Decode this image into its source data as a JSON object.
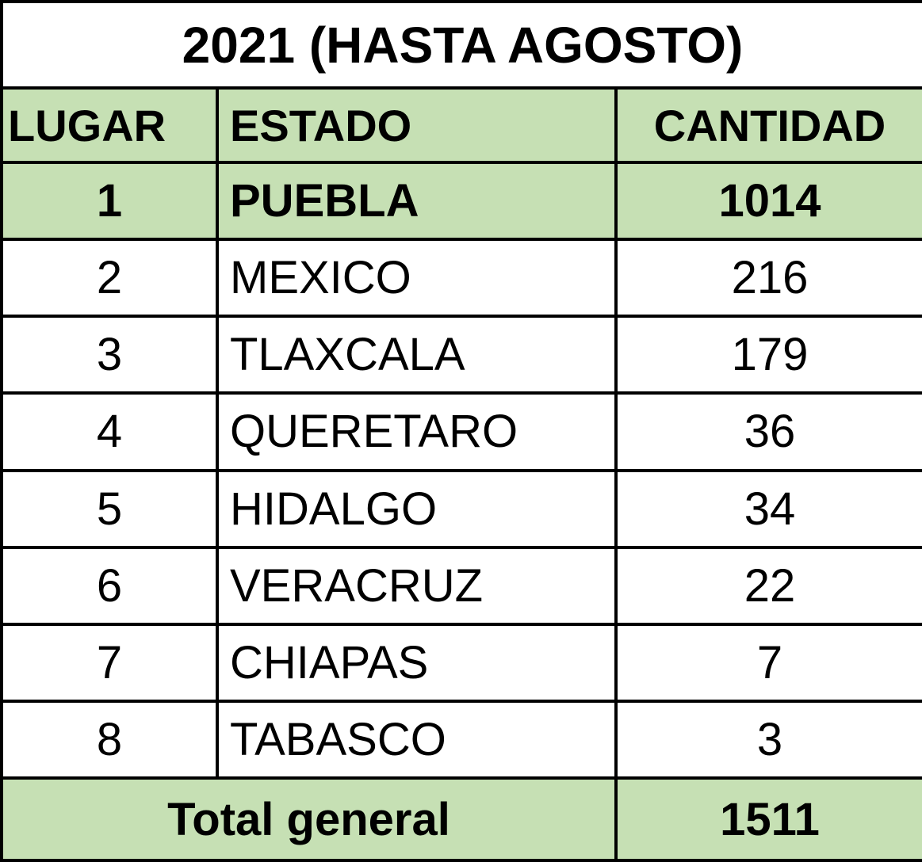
{
  "table": {
    "title": "2021 (HASTA AGOSTO)",
    "header": [
      "LUGAR",
      "ESTADO",
      "CANTIDAD"
    ],
    "rows": [
      [
        1,
        "PUEBLA",
        1014
      ],
      [
        2,
        "MEXICO",
        216
      ],
      [
        3,
        "TLAXCALA",
        179
      ],
      [
        4,
        "QUERETARO",
        36
      ],
      [
        5,
        "HIDALGO",
        34
      ],
      [
        6,
        "VERACRUZ",
        22
      ],
      [
        7,
        "CHIAPAS",
        7
      ],
      [
        8,
        "TABASCO",
        3
      ]
    ],
    "total": {
      "label": "Total general",
      "value": 1511
    }
  }
}
